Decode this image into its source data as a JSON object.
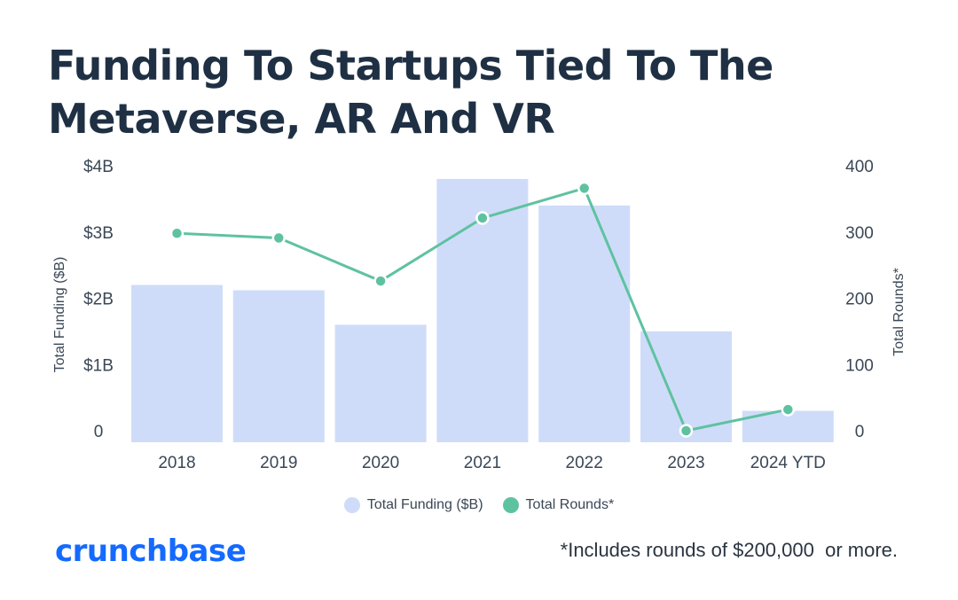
{
  "colors": {
    "title": "#1f3044",
    "bar": "#cfdcf9",
    "line": "#5ec2a0",
    "axis_text": "#3a4756",
    "brand": "#146aff"
  },
  "logo_text": "crunchbase",
  "footnote": "*Includes rounds of $200,000  or more.",
  "chart_data": {
    "type": "bar",
    "title_lines": [
      "Funding To Startups Tied To The",
      "Metaverse, AR And VR"
    ],
    "categories": [
      "2018",
      "2019",
      "2020",
      "2021",
      "2022",
      "2023",
      "2024 YTD"
    ],
    "series": [
      {
        "name": "Total Funding ($B)",
        "type": "bar",
        "axis": "left",
        "values": [
          2.2,
          2.12,
          1.6,
          3.8,
          3.4,
          1.5,
          0.3
        ]
      },
      {
        "name": "Total Rounds*",
        "type": "line",
        "axis": "right",
        "values": [
          298,
          291,
          226,
          321,
          366,
          0,
          32
        ]
      }
    ],
    "y_left": {
      "label": "Total Funding ($B)",
      "ticks": [
        0,
        1,
        2,
        3,
        4
      ],
      "tick_labels": [
        "0",
        "$1B",
        "$2B",
        "$3B",
        "$4B"
      ],
      "ylim": [
        0,
        4
      ]
    },
    "y_right": {
      "label": "Total Rounds*",
      "ticks": [
        0,
        100,
        200,
        300,
        400
      ],
      "tick_labels": [
        "0",
        "100",
        "200",
        "300",
        "400"
      ],
      "ylim": [
        0,
        400
      ]
    },
    "legend": [
      "Total Funding ($B)",
      "Total Rounds*"
    ],
    "legend_position": "bottom-center",
    "grid": false
  }
}
